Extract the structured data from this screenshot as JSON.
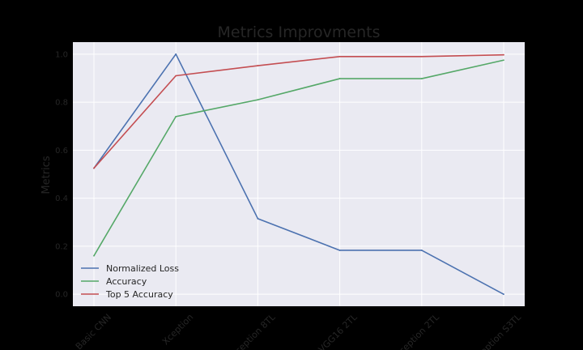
{
  "chart_data": {
    "type": "line",
    "title": "Metrics Improvments",
    "xlabel": "",
    "ylabel": "Metrics",
    "categories": [
      "Basic CNN",
      "Xception",
      "Xception 8TL",
      "VGG16 2TL",
      "Xception 2TL",
      "Xception S3TL"
    ],
    "ylim": [
      -0.05,
      1.05
    ],
    "yticks": [
      "0.0",
      "0.2",
      "0.4",
      "0.6",
      "0.8",
      "1.0"
    ],
    "grid": true,
    "legend_position": "lower-left",
    "series": [
      {
        "name": "Normalized Loss",
        "color": "#4c72b0",
        "values": [
          0.525,
          1.0,
          0.315,
          0.183,
          0.183,
          0.0
        ]
      },
      {
        "name": "Accuracy",
        "color": "#55a868",
        "values": [
          0.16,
          0.74,
          0.81,
          0.898,
          0.898,
          0.975
        ]
      },
      {
        "name": "Top 5 Accuracy",
        "color": "#c44e52",
        "values": [
          0.525,
          0.91,
          0.952,
          0.99,
          0.99,
          0.997
        ]
      }
    ]
  }
}
